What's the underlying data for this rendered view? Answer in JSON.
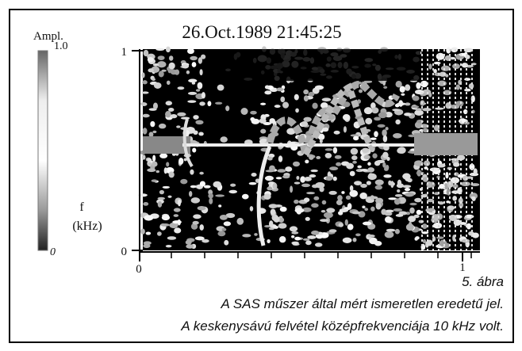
{
  "title": "26.Oct.1989  21:45:25",
  "colorbar": {
    "label": "Ampl.",
    "max": "1.0",
    "min": "0"
  },
  "y_axis": {
    "label_f": "f",
    "label_unit": "(kHz)",
    "ticks": [
      "1",
      "0"
    ]
  },
  "x_axis": {
    "ticks": [
      "0",
      "1"
    ]
  },
  "caption": {
    "number": "5. ábra",
    "lines": [
      "A SAS műszer által mért ismeretlen eredetű jel.",
      "A keskenysávú felvétel középfrekvenciája 10 kHz volt."
    ]
  }
}
